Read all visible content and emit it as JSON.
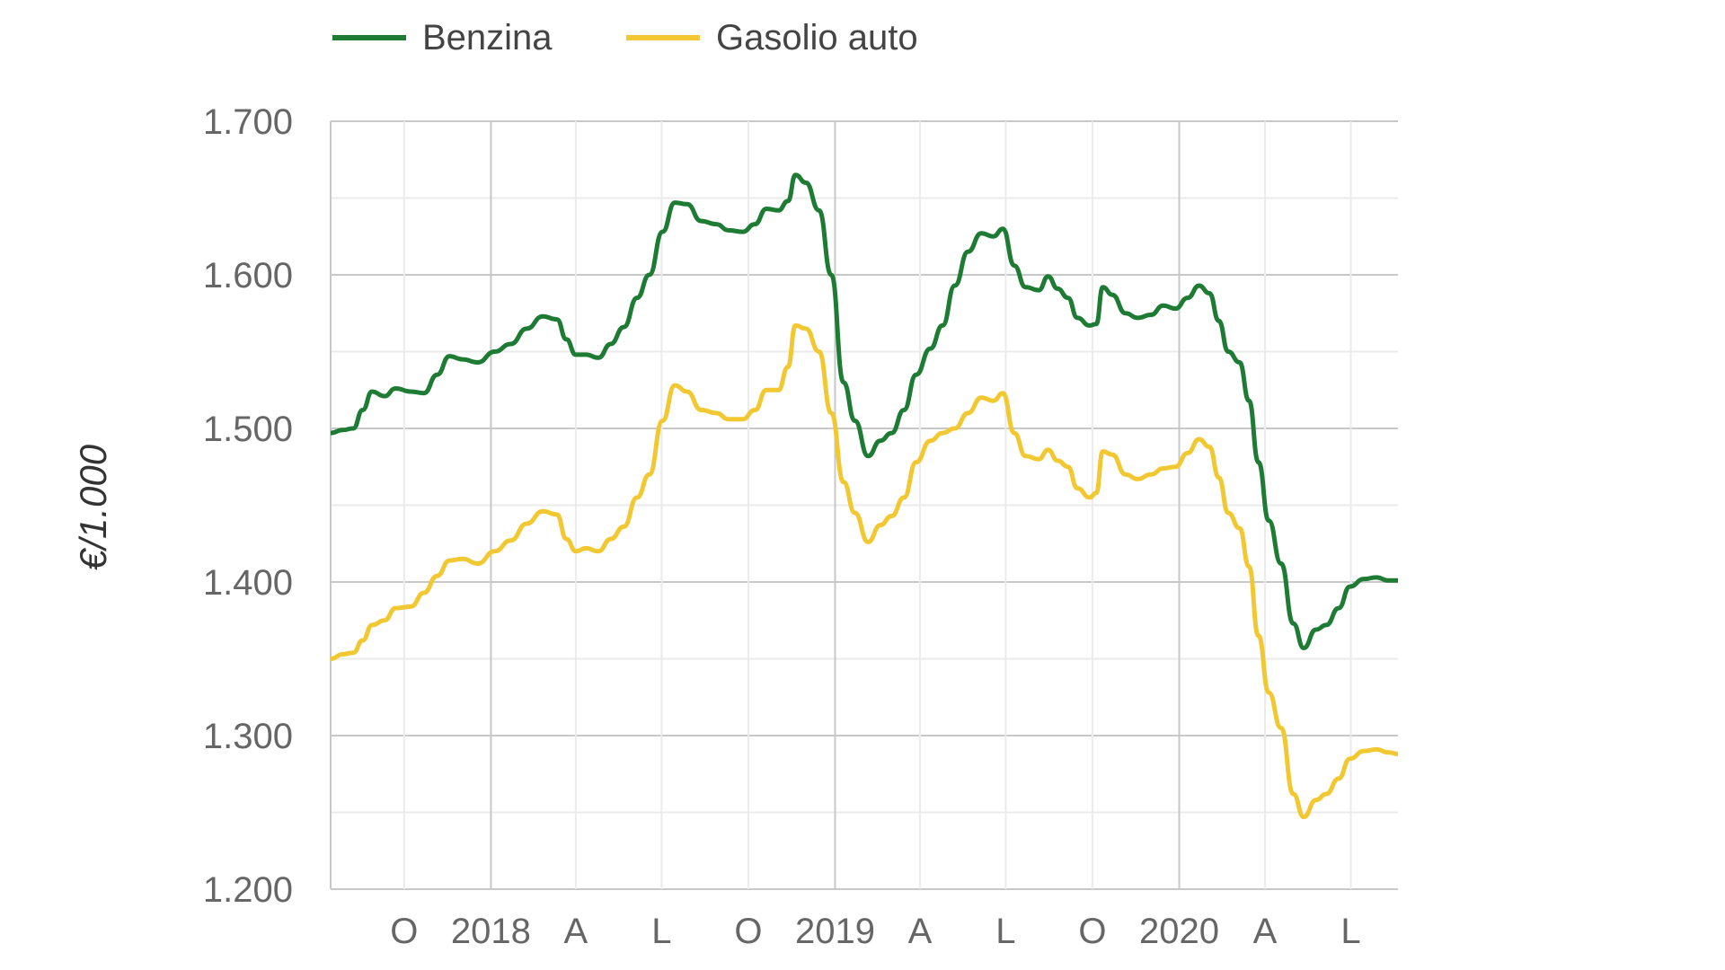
{
  "chart_data": {
    "type": "line",
    "title": "",
    "xlabel": "",
    "ylabel": "€/1.000",
    "ylim": [
      1.2,
      1.7
    ],
    "y_ticks": [
      "1.700",
      "1.600",
      "1.500",
      "1.400",
      "1.300",
      "1.200"
    ],
    "y_tick_values": [
      1.7,
      1.6,
      1.5,
      1.4,
      1.3,
      1.2
    ],
    "x_range": [
      "2017-07-15",
      "2020-08-20"
    ],
    "x_ticks": [
      {
        "label": "O",
        "date": "2017-10-01"
      },
      {
        "label": "2018",
        "date": "2018-01-01"
      },
      {
        "label": "A",
        "date": "2018-04-01"
      },
      {
        "label": "L",
        "date": "2018-07-01"
      },
      {
        "label": "O",
        "date": "2018-10-01"
      },
      {
        "label": "2019",
        "date": "2019-01-01"
      },
      {
        "label": "A",
        "date": "2019-04-01"
      },
      {
        "label": "L",
        "date": "2019-07-01"
      },
      {
        "label": "O",
        "date": "2019-10-01"
      },
      {
        "label": "2020",
        "date": "2020-01-01"
      },
      {
        "label": "A",
        "date": "2020-04-01"
      },
      {
        "label": "L",
        "date": "2020-07-01"
      }
    ],
    "grid": true,
    "legend_position": "top-left",
    "series": [
      {
        "name": "Benzina",
        "color": "#1e7b34",
        "points": [
          [
            "2017-07-15",
            1.497
          ],
          [
            "2017-07-28",
            1.499
          ],
          [
            "2017-08-08",
            1.5
          ],
          [
            "2017-08-18",
            1.512
          ],
          [
            "2017-08-28",
            1.524
          ],
          [
            "2017-09-10",
            1.521
          ],
          [
            "2017-09-22",
            1.526
          ],
          [
            "2017-10-08",
            1.524
          ],
          [
            "2017-10-22",
            1.523
          ],
          [
            "2017-11-05",
            1.535
          ],
          [
            "2017-11-18",
            1.547
          ],
          [
            "2017-12-02",
            1.545
          ],
          [
            "2017-12-18",
            1.543
          ],
          [
            "2018-01-05",
            1.55
          ],
          [
            "2018-01-22",
            1.555
          ],
          [
            "2018-02-08",
            1.565
          ],
          [
            "2018-02-25",
            1.573
          ],
          [
            "2018-03-12",
            1.571
          ],
          [
            "2018-03-22",
            1.558
          ],
          [
            "2018-04-01",
            1.548
          ],
          [
            "2018-04-12",
            1.548
          ],
          [
            "2018-04-25",
            1.546
          ],
          [
            "2018-05-08",
            1.555
          ],
          [
            "2018-05-22",
            1.566
          ],
          [
            "2018-06-05",
            1.585
          ],
          [
            "2018-06-18",
            1.6
          ],
          [
            "2018-07-02",
            1.628
          ],
          [
            "2018-07-15",
            1.647
          ],
          [
            "2018-07-28",
            1.646
          ],
          [
            "2018-08-12",
            1.635
          ],
          [
            "2018-08-28",
            1.633
          ],
          [
            "2018-09-10",
            1.629
          ],
          [
            "2018-09-25",
            1.628
          ],
          [
            "2018-10-08",
            1.633
          ],
          [
            "2018-10-20",
            1.643
          ],
          [
            "2018-11-02",
            1.642
          ],
          [
            "2018-11-12",
            1.648
          ],
          [
            "2018-11-20",
            1.665
          ],
          [
            "2018-12-01",
            1.66
          ],
          [
            "2018-12-15",
            1.642
          ],
          [
            "2018-12-28",
            1.6
          ],
          [
            "2019-01-10",
            1.53
          ],
          [
            "2019-01-22",
            1.505
          ],
          [
            "2019-02-05",
            1.482
          ],
          [
            "2019-02-18",
            1.492
          ],
          [
            "2019-03-02",
            1.497
          ],
          [
            "2019-03-15",
            1.512
          ],
          [
            "2019-03-28",
            1.535
          ],
          [
            "2019-04-12",
            1.552
          ],
          [
            "2019-04-25",
            1.567
          ],
          [
            "2019-05-08",
            1.593
          ],
          [
            "2019-05-22",
            1.615
          ],
          [
            "2019-06-05",
            1.627
          ],
          [
            "2019-06-18",
            1.625
          ],
          [
            "2019-06-28",
            1.63
          ],
          [
            "2019-07-10",
            1.606
          ],
          [
            "2019-07-22",
            1.592
          ],
          [
            "2019-08-05",
            1.59
          ],
          [
            "2019-08-15",
            1.599
          ],
          [
            "2019-08-25",
            1.591
          ],
          [
            "2019-09-05",
            1.585
          ],
          [
            "2019-09-15",
            1.572
          ],
          [
            "2019-09-28",
            1.567
          ],
          [
            "2019-10-05",
            1.568
          ],
          [
            "2019-10-12",
            1.592
          ],
          [
            "2019-10-22",
            1.587
          ],
          [
            "2019-11-05",
            1.575
          ],
          [
            "2019-11-18",
            1.572
          ],
          [
            "2019-12-02",
            1.574
          ],
          [
            "2019-12-15",
            1.58
          ],
          [
            "2019-12-28",
            1.578
          ],
          [
            "2020-01-10",
            1.585
          ],
          [
            "2020-01-22",
            1.593
          ],
          [
            "2020-02-02",
            1.588
          ],
          [
            "2020-02-12",
            1.57
          ],
          [
            "2020-02-22",
            1.55
          ],
          [
            "2020-03-05",
            1.543
          ],
          [
            "2020-03-15",
            1.518
          ],
          [
            "2020-03-25",
            1.478
          ],
          [
            "2020-04-05",
            1.44
          ],
          [
            "2020-04-18",
            1.412
          ],
          [
            "2020-05-01",
            1.373
          ],
          [
            "2020-05-12",
            1.357
          ],
          [
            "2020-05-25",
            1.369
          ],
          [
            "2020-06-05",
            1.372
          ],
          [
            "2020-06-18",
            1.383
          ],
          [
            "2020-06-30",
            1.397
          ],
          [
            "2020-07-15",
            1.402
          ],
          [
            "2020-07-28",
            1.403
          ],
          [
            "2020-08-10",
            1.401
          ],
          [
            "2020-08-20",
            1.401
          ]
        ]
      },
      {
        "name": "Gasolio auto",
        "color": "#f2c832",
        "points": [
          [
            "2017-07-15",
            1.35
          ],
          [
            "2017-07-28",
            1.353
          ],
          [
            "2017-08-08",
            1.354
          ],
          [
            "2017-08-18",
            1.362
          ],
          [
            "2017-08-28",
            1.372
          ],
          [
            "2017-09-10",
            1.375
          ],
          [
            "2017-09-22",
            1.383
          ],
          [
            "2017-10-08",
            1.384
          ],
          [
            "2017-10-22",
            1.393
          ],
          [
            "2017-11-05",
            1.404
          ],
          [
            "2017-11-18",
            1.414
          ],
          [
            "2017-12-02",
            1.415
          ],
          [
            "2017-12-18",
            1.412
          ],
          [
            "2018-01-05",
            1.42
          ],
          [
            "2018-01-22",
            1.427
          ],
          [
            "2018-02-08",
            1.438
          ],
          [
            "2018-02-25",
            1.446
          ],
          [
            "2018-03-12",
            1.444
          ],
          [
            "2018-03-22",
            1.428
          ],
          [
            "2018-04-01",
            1.42
          ],
          [
            "2018-04-12",
            1.422
          ],
          [
            "2018-04-25",
            1.42
          ],
          [
            "2018-05-08",
            1.428
          ],
          [
            "2018-05-22",
            1.436
          ],
          [
            "2018-06-05",
            1.455
          ],
          [
            "2018-06-18",
            1.47
          ],
          [
            "2018-07-02",
            1.505
          ],
          [
            "2018-07-15",
            1.528
          ],
          [
            "2018-07-28",
            1.524
          ],
          [
            "2018-08-12",
            1.512
          ],
          [
            "2018-08-28",
            1.51
          ],
          [
            "2018-09-10",
            1.506
          ],
          [
            "2018-09-25",
            1.506
          ],
          [
            "2018-10-08",
            1.512
          ],
          [
            "2018-10-20",
            1.525
          ],
          [
            "2018-11-02",
            1.525
          ],
          [
            "2018-11-12",
            1.54
          ],
          [
            "2018-11-20",
            1.567
          ],
          [
            "2018-12-01",
            1.565
          ],
          [
            "2018-12-15",
            1.55
          ],
          [
            "2018-12-28",
            1.51
          ],
          [
            "2019-01-10",
            1.465
          ],
          [
            "2019-01-22",
            1.445
          ],
          [
            "2019-02-05",
            1.426
          ],
          [
            "2019-02-18",
            1.437
          ],
          [
            "2019-03-02",
            1.443
          ],
          [
            "2019-03-15",
            1.455
          ],
          [
            "2019-03-28",
            1.478
          ],
          [
            "2019-04-12",
            1.492
          ],
          [
            "2019-04-25",
            1.497
          ],
          [
            "2019-05-08",
            1.5
          ],
          [
            "2019-05-22",
            1.51
          ],
          [
            "2019-06-05",
            1.52
          ],
          [
            "2019-06-18",
            1.518
          ],
          [
            "2019-06-28",
            1.523
          ],
          [
            "2019-07-10",
            1.497
          ],
          [
            "2019-07-22",
            1.482
          ],
          [
            "2019-08-05",
            1.48
          ],
          [
            "2019-08-15",
            1.486
          ],
          [
            "2019-08-25",
            1.479
          ],
          [
            "2019-09-05",
            1.475
          ],
          [
            "2019-09-15",
            1.461
          ],
          [
            "2019-09-28",
            1.455
          ],
          [
            "2019-10-05",
            1.458
          ],
          [
            "2019-10-12",
            1.485
          ],
          [
            "2019-10-22",
            1.483
          ],
          [
            "2019-11-05",
            1.47
          ],
          [
            "2019-11-18",
            1.467
          ],
          [
            "2019-12-02",
            1.47
          ],
          [
            "2019-12-15",
            1.474
          ],
          [
            "2019-12-28",
            1.475
          ],
          [
            "2020-01-10",
            1.484
          ],
          [
            "2020-01-22",
            1.493
          ],
          [
            "2020-02-02",
            1.488
          ],
          [
            "2020-02-12",
            1.468
          ],
          [
            "2020-02-22",
            1.445
          ],
          [
            "2020-03-05",
            1.435
          ],
          [
            "2020-03-15",
            1.41
          ],
          [
            "2020-03-25",
            1.365
          ],
          [
            "2020-04-05",
            1.328
          ],
          [
            "2020-04-18",
            1.305
          ],
          [
            "2020-05-01",
            1.262
          ],
          [
            "2020-05-12",
            1.247
          ],
          [
            "2020-05-25",
            1.258
          ],
          [
            "2020-06-05",
            1.262
          ],
          [
            "2020-06-18",
            1.272
          ],
          [
            "2020-06-30",
            1.285
          ],
          [
            "2020-07-15",
            1.29
          ],
          [
            "2020-07-28",
            1.291
          ],
          [
            "2020-08-10",
            1.289
          ],
          [
            "2020-08-20",
            1.288
          ]
        ]
      }
    ]
  }
}
